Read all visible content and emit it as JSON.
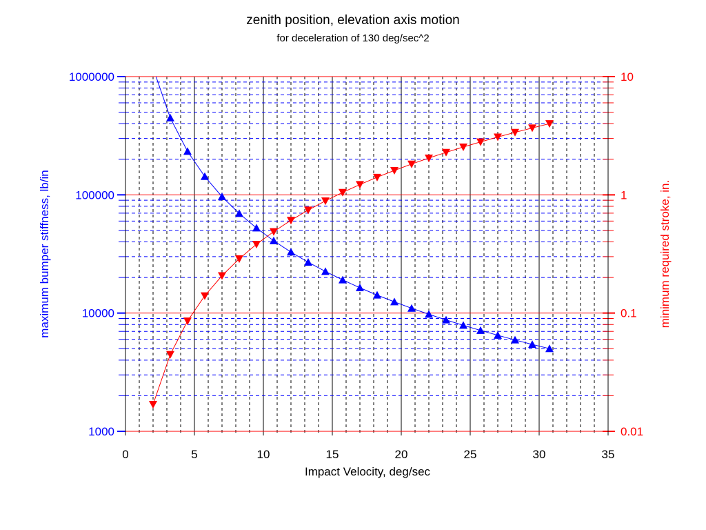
{
  "chart_data": {
    "type": "line",
    "title": "zenith position, elevation axis motion",
    "subtitle": "for deceleration of 130 deg/sec^2",
    "xlabel": "Impact Velocity, deg/sec",
    "ylabel_left": "maximum bumper stiffness, lb/in",
    "ylabel_right": "minimum required stroke, in.",
    "xlim": [
      0,
      35
    ],
    "xticks": [
      "0",
      "5",
      "10",
      "15",
      "20",
      "25",
      "30",
      "35"
    ],
    "ylim_left": [
      1000,
      1000000
    ],
    "yscale_left": "log",
    "yticks_left": [
      "1000",
      "10000",
      "100000",
      "1000000"
    ],
    "ylim_right": [
      0.01,
      10
    ],
    "yscale_right": "log",
    "yticks_right": [
      "0.01",
      "0.1",
      "1",
      "10"
    ],
    "grid": true,
    "colors": {
      "left_axis": "#0000ff",
      "right_axis": "#ff0000",
      "grid_major_h": "#ff0000",
      "grid_minor_h": "#0000ff",
      "grid_v": "#000000"
    },
    "x": [
      2,
      3.25,
      4.5,
      5.75,
      7,
      8.25,
      9.5,
      10.75,
      12,
      13.25,
      14.5,
      15.75,
      17,
      18.25,
      19.5,
      20.75,
      22,
      23.25,
      24.5,
      25.75,
      27,
      28.25,
      29.5,
      30.75
    ],
    "series": [
      {
        "axis": "left",
        "color": "#0000ff",
        "marker": "triangle-up",
        "values": [
          1183000,
          447000,
          233000,
          143000,
          96500,
          69500,
          52400,
          40900,
          32800,
          26900,
          22500,
          19070,
          16370,
          14190,
          12440,
          10980,
          9770,
          8750,
          7880,
          7130,
          6490,
          5920,
          5430,
          5000
        ]
      },
      {
        "axis": "right",
        "color": "#ff0000",
        "marker": "triangle-down",
        "values": [
          0.0169,
          0.0447,
          0.0857,
          0.14,
          0.207,
          0.288,
          0.382,
          0.489,
          0.609,
          0.743,
          0.889,
          1.049,
          1.222,
          1.409,
          1.608,
          1.821,
          2.047,
          2.287,
          2.539,
          2.805,
          3.084,
          3.376,
          3.681,
          4.0
        ]
      }
    ]
  }
}
